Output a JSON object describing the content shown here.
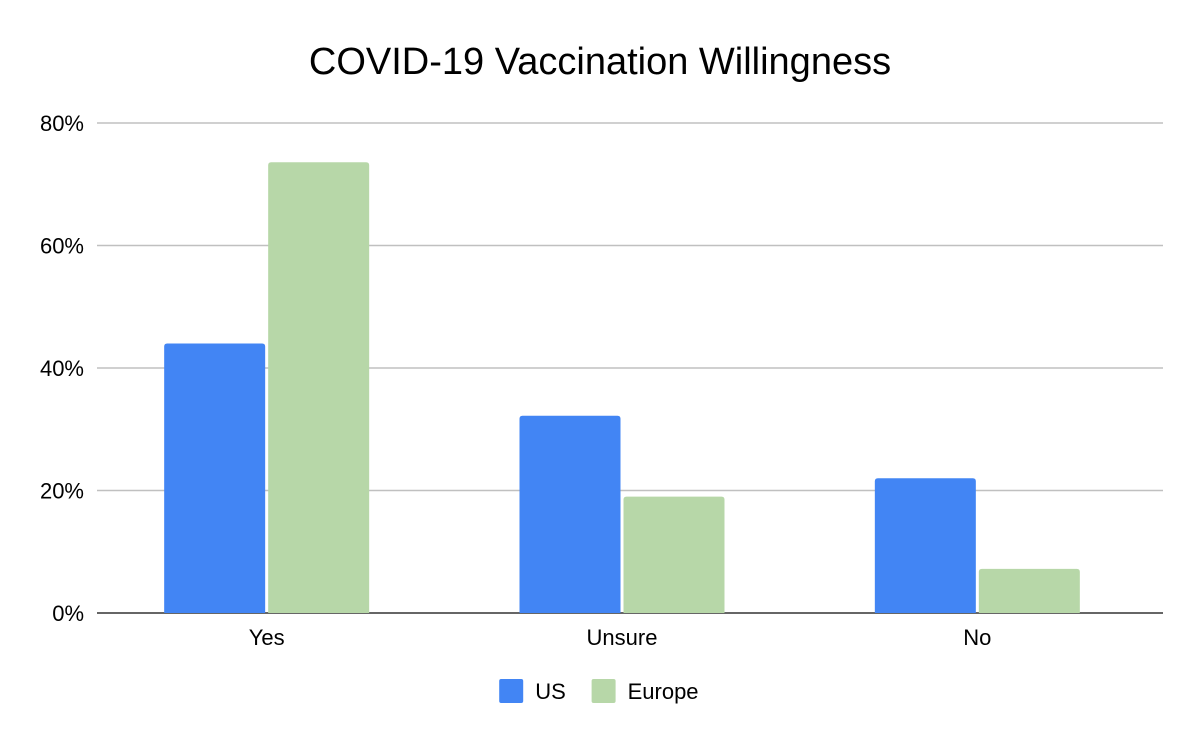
{
  "chart_data": {
    "type": "bar",
    "title": "COVID-19 Vaccination Willingness",
    "xlabel": "",
    "ylabel": "",
    "categories": [
      "Yes",
      "Unsure",
      "No"
    ],
    "series": [
      {
        "name": "US",
        "values": [
          44,
          32.2,
          22
        ],
        "color": "#4285f4"
      },
      {
        "name": "Europe",
        "values": [
          73.6,
          19,
          7.2
        ],
        "color": "#b7d7a8"
      }
    ],
    "ylim": [
      0,
      80
    ],
    "yticks": [
      0,
      20,
      40,
      60,
      80
    ],
    "ytick_labels": [
      "0%",
      "20%",
      "40%",
      "60%",
      "80%"
    ],
    "grid": true,
    "legend": "bottom"
  }
}
